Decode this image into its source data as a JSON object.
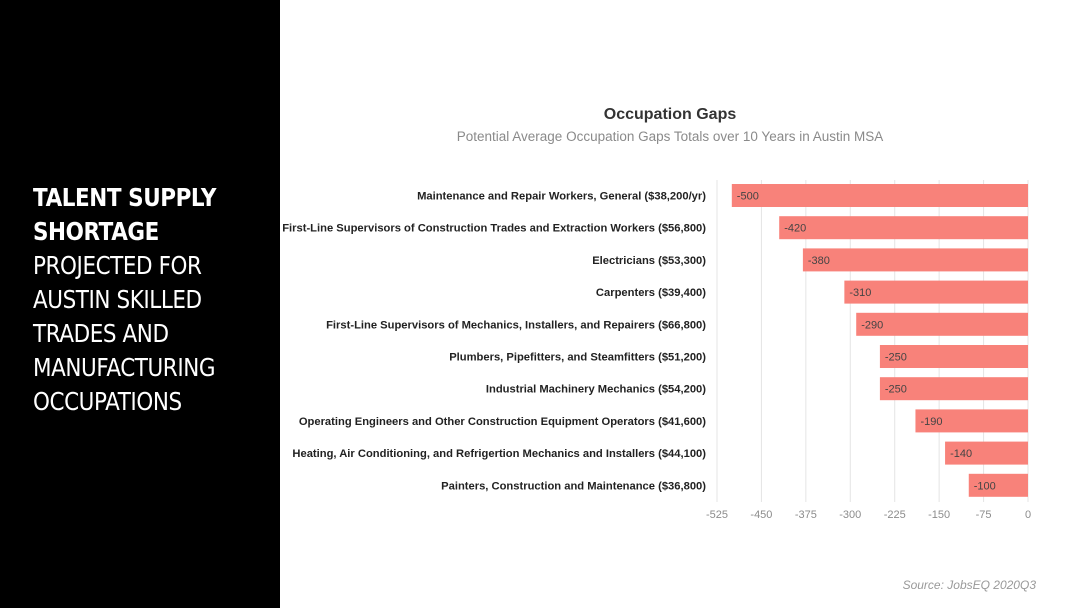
{
  "sidebar": {
    "title_lines_bold": [
      "TALENT SUPPLY",
      "SHORTAGE"
    ],
    "title_lines": [
      "PROJECTED FOR",
      "AUSTIN SKILLED",
      "TRADES AND",
      "MANUFACTURING",
      "OCCUPATIONS"
    ]
  },
  "source": "Source: JobsEQ 2020Q3",
  "colors": {
    "bar": "#F8827A",
    "grid": "#e4e4e4",
    "tick": "#8c8c8c",
    "category": "#222222"
  },
  "chart_data": {
    "type": "bar",
    "orientation": "horizontal",
    "title": "Occupation Gaps",
    "subtitle": "Potential Average Occupation Gaps Totals over 10 Years in Austin MSA",
    "categories": [
      "Maintenance and Repair Workers, General ($38,200/yr)",
      "First-Line Supervisors of Construction Trades and Extraction Workers ($56,800)",
      "Electricians ($53,300)",
      "Carpenters ($39,400)",
      "First-Line Supervisors of Mechanics, Installers, and Repairers ($66,800)",
      "Plumbers, Pipefitters, and Steamfitters ($51,200)",
      "Industrial Machinery Mechanics ($54,200)",
      "Operating Engineers and Other Construction Equipment Operators ($41,600)",
      "Heating, Air Conditioning, and Refrigertion Mechanics and Installers ($44,100)",
      "Painters, Construction and Maintenance ($36,800)"
    ],
    "values": [
      -500,
      -420,
      -380,
      -310,
      -290,
      -250,
      -250,
      -190,
      -140,
      -100
    ],
    "data_labels": [
      "-500",
      "-420",
      "-380",
      "-310",
      "-290",
      "-250",
      "-250",
      "-190",
      "-140",
      "-100"
    ],
    "xlim": [
      -525,
      0
    ],
    "xticks": [
      -525,
      -450,
      -375,
      -300,
      -225,
      -150,
      -75,
      0
    ],
    "xtick_labels": [
      "-525",
      "-450",
      "-375",
      "-300",
      "-225",
      "-150",
      "-75",
      "0"
    ],
    "grid": true,
    "legend": "none"
  }
}
